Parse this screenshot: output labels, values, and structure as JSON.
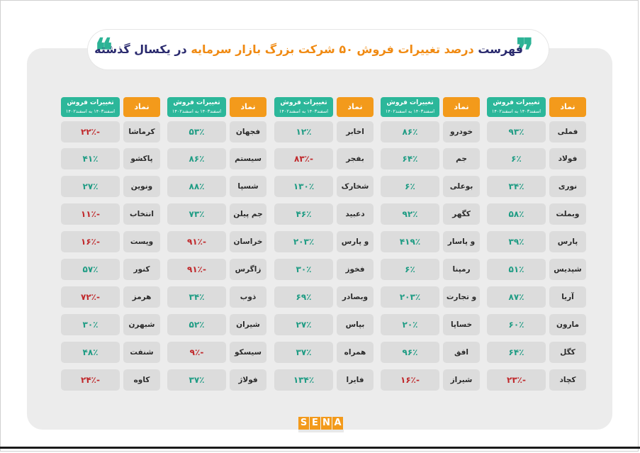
{
  "title": {
    "part1": "فهرست",
    "part2": "درصد تغییرات فروش ۵۰ شرکت بزرگ بازار سرمایه",
    "part3": "در یکسال گذشته"
  },
  "header": {
    "symbol": "نماد",
    "change_line1": "تغییرات فروش",
    "change_line2": "اسفند۱۴۰۳ به اسفند۱۴۰۲"
  },
  "colors": {
    "accent_orange": "#f39a1b",
    "accent_teal": "#2cb79a",
    "positive": "#1f9c84",
    "negative": "#c0282b"
  },
  "logo": {
    "letters": [
      "S",
      "E",
      "N",
      "A"
    ]
  },
  "groups": [
    {
      "rows": [
        {
          "symbol": "فملی",
          "change": "۹۳٪",
          "sign": "pos"
        },
        {
          "symbol": "فولاد",
          "change": "۶٪",
          "sign": "pos"
        },
        {
          "symbol": "نوری",
          "change": "۳۴٪",
          "sign": "pos"
        },
        {
          "symbol": "وبملت",
          "change": "۵۸٪",
          "sign": "pos"
        },
        {
          "symbol": "پارس",
          "change": "۳۹٪",
          "sign": "pos"
        },
        {
          "symbol": "شپدیس",
          "change": "۵۱٪",
          "sign": "pos"
        },
        {
          "symbol": "آریا",
          "change": "۸۷٪",
          "sign": "pos"
        },
        {
          "symbol": "مارون",
          "change": "۶۰٪",
          "sign": "pos"
        },
        {
          "symbol": "کگل",
          "change": "۶۴٪",
          "sign": "pos"
        },
        {
          "symbol": "کچاد",
          "change": "-۲۳٪",
          "sign": "neg"
        }
      ]
    },
    {
      "rows": [
        {
          "symbol": "خودرو",
          "change": "۸۶٪",
          "sign": "pos"
        },
        {
          "symbol": "جم",
          "change": "۶۴٪",
          "sign": "pos"
        },
        {
          "symbol": "بوعلی",
          "change": "۶٪",
          "sign": "pos"
        },
        {
          "symbol": "کگهر",
          "change": "۹۲٪",
          "sign": "pos"
        },
        {
          "symbol": "و پاسار",
          "change": "۴۱۹٪",
          "sign": "pos"
        },
        {
          "symbol": "رمپنا",
          "change": "۶٪",
          "sign": "pos"
        },
        {
          "symbol": "و تجارت",
          "change": "۲۰۳٪",
          "sign": "pos"
        },
        {
          "symbol": "خساپا",
          "change": "۲۰٪",
          "sign": "pos"
        },
        {
          "symbol": "افق",
          "change": "۹۶٪",
          "sign": "pos"
        },
        {
          "symbol": "شیراز",
          "change": "-۱۶٪",
          "sign": "neg"
        }
      ]
    },
    {
      "rows": [
        {
          "symbol": "اخابر",
          "change": "۱۲٪",
          "sign": "pos"
        },
        {
          "symbol": "بفجر",
          "change": "-۸۳٪",
          "sign": "neg"
        },
        {
          "symbol": "شخارک",
          "change": "۱۳۰٪",
          "sign": "pos"
        },
        {
          "symbol": "دعبید",
          "change": "۴۶٪",
          "sign": "pos"
        },
        {
          "symbol": "و پارس",
          "change": "۲۰۳٪",
          "sign": "pos"
        },
        {
          "symbol": "فخوز",
          "change": "۳۰٪",
          "sign": "pos"
        },
        {
          "symbol": "وبصادر",
          "change": "۶۹٪",
          "sign": "pos"
        },
        {
          "symbol": "بپاس",
          "change": "۲۷٪",
          "sign": "pos"
        },
        {
          "symbol": "همراه",
          "change": "۳۷٪",
          "sign": "pos"
        },
        {
          "symbol": "فایرا",
          "change": "۱۳۴٪",
          "sign": "pos"
        }
      ]
    },
    {
      "rows": [
        {
          "symbol": "فجهان",
          "change": "۵۳٪",
          "sign": "pos"
        },
        {
          "symbol": "سیستم",
          "change": "۸۶٪",
          "sign": "pos"
        },
        {
          "symbol": "شسپا",
          "change": "۸۸٪",
          "sign": "pos"
        },
        {
          "symbol": "جم پیلن",
          "change": "۷۳٪",
          "sign": "pos"
        },
        {
          "symbol": "خراسان",
          "change": "-۹۱٪",
          "sign": "neg"
        },
        {
          "symbol": "زاگرس",
          "change": "-۹۱٪",
          "sign": "neg"
        },
        {
          "symbol": "ذوب",
          "change": "۳۴٪",
          "sign": "pos"
        },
        {
          "symbol": "شیران",
          "change": "۵۲٪",
          "sign": "pos"
        },
        {
          "symbol": "سیسکو",
          "change": "-۹٪",
          "sign": "neg"
        },
        {
          "symbol": "فولاژ",
          "change": "۳۷٪",
          "sign": "pos"
        }
      ]
    },
    {
      "rows": [
        {
          "symbol": "کرماشا",
          "change": "-۲۲٪",
          "sign": "neg"
        },
        {
          "symbol": "پاکشو",
          "change": "۴۱٪",
          "sign": "pos"
        },
        {
          "symbol": "ونوین",
          "change": "۲۷٪",
          "sign": "pos"
        },
        {
          "symbol": "انتخاب",
          "change": "-۱۱٪",
          "sign": "neg"
        },
        {
          "symbol": "وپست",
          "change": "-۱۶٪",
          "sign": "neg"
        },
        {
          "symbol": "کنور",
          "change": "۵۷٪",
          "sign": "pos"
        },
        {
          "symbol": "هرمز",
          "change": "-۷۲٪",
          "sign": "neg"
        },
        {
          "symbol": "شبهرن",
          "change": "۳۰٪",
          "sign": "pos"
        },
        {
          "symbol": "شنفت",
          "change": "۴۸٪",
          "sign": "pos"
        },
        {
          "symbol": "کاوه",
          "change": "-۲۴٪",
          "sign": "neg"
        }
      ]
    }
  ]
}
